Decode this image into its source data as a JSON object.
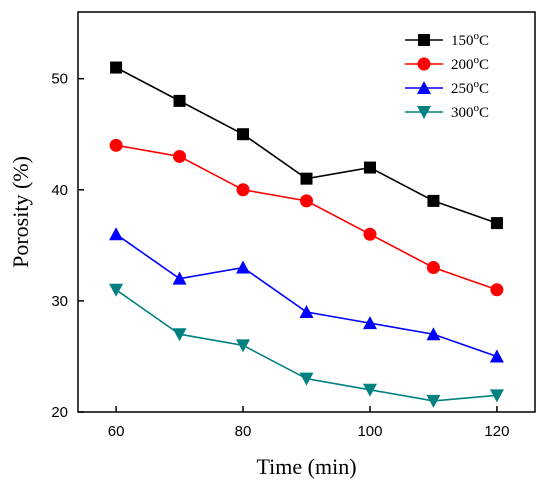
{
  "chart_data": {
    "type": "line",
    "xlabel": "Time (min)",
    "ylabel": "Porosity (%)",
    "xlim": [
      54,
      126
    ],
    "ylim": [
      20,
      56
    ],
    "xticks": [
      60,
      80,
      100,
      120
    ],
    "yticks": [
      20,
      30,
      40,
      50
    ],
    "x": [
      60,
      70,
      80,
      90,
      100,
      110,
      120
    ],
    "legend_position": "top-right",
    "series": [
      {
        "name": "150",
        "unit": "oC",
        "color": "#000000",
        "marker": "square",
        "values": [
          51,
          48,
          45,
          41,
          42,
          39,
          37
        ]
      },
      {
        "name": "200",
        "unit": "oC",
        "color": "#ff0000",
        "marker": "circle",
        "values": [
          44,
          43,
          40,
          39,
          36,
          33,
          31
        ]
      },
      {
        "name": "250",
        "unit": "oC",
        "color": "#0000ff",
        "marker": "triangle-up",
        "values": [
          36,
          32,
          33,
          29,
          28,
          27,
          25
        ]
      },
      {
        "name": "300",
        "unit": "oC",
        "color": "#008080",
        "marker": "triangle-down",
        "values": [
          31,
          27,
          26,
          23,
          22,
          21,
          21.5
        ]
      }
    ]
  }
}
